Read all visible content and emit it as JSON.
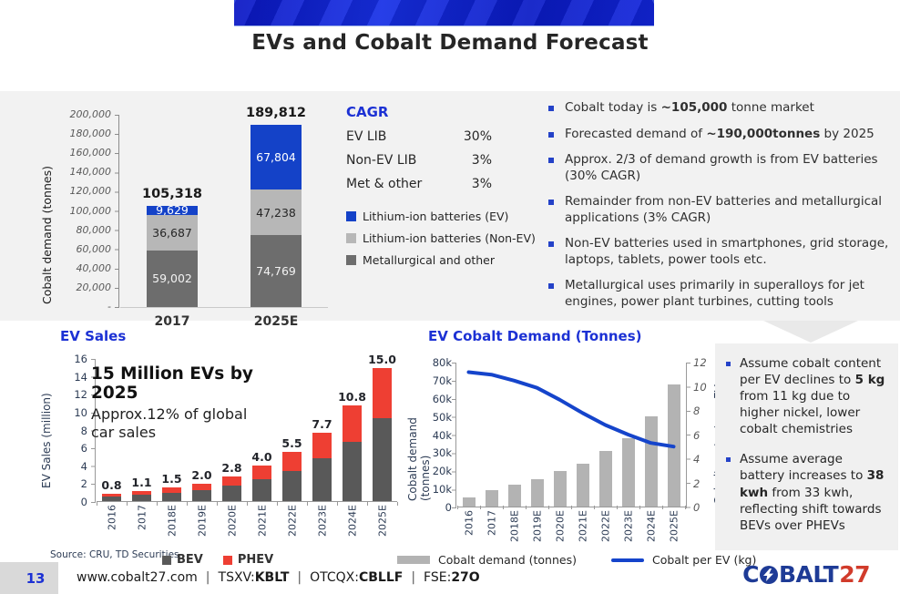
{
  "title": "EVs and Cobalt Demand Forecast",
  "colors": {
    "accent_blue": "#1c31d4",
    "chart_blue": "#1544cb",
    "bev_gray": "#595959",
    "phev_red": "#ee3f33",
    "light_gray_bar": "#b3b3b3",
    "panel_gray": "#f2f2f2"
  },
  "chart_data": [
    {
      "type": "bar",
      "stacked": true,
      "title": "",
      "ylabel": "Cobalt demand (tonnes)",
      "ylim": [
        0,
        200000
      ],
      "yticks": [
        "200,000",
        "180,000",
        "160,000",
        "140,000",
        "120,000",
        "100,000",
        "80,000",
        "60,000",
        "40,000",
        "20,000",
        "-"
      ],
      "categories": [
        "2017",
        "2025E"
      ],
      "totals": [
        "105,318",
        "189,812"
      ],
      "series": [
        {
          "name": "Metallurgical and other",
          "color": "#6d6d6d",
          "label_color": "#f2f2f2",
          "values": [
            59002,
            74769
          ],
          "labels": [
            "59,002",
            "74,769"
          ]
        },
        {
          "name": "Lithium-ion batteries (Non-EV)",
          "color": "#b7b7b7",
          "label_color": "#262626",
          "values": [
            36687,
            47238
          ],
          "labels": [
            "36,687",
            "47,238"
          ]
        },
        {
          "name": "Lithium-ion batteries (EV)",
          "color": "#1442c8",
          "label_color": "#ffffff",
          "values": [
            9629,
            67804
          ],
          "labels": [
            "9,629",
            "67,804"
          ]
        }
      ],
      "legend_position": "right",
      "legend": [
        {
          "label": "Lithium-ion batteries (EV)",
          "color": "#1442c8"
        },
        {
          "label": "Lithium-ion batteries (Non-EV)",
          "color": "#b7b7b7"
        },
        {
          "label": "Metallurgical and other",
          "color": "#6d6d6d"
        }
      ]
    },
    {
      "type": "bar",
      "stacked": true,
      "title": "EV Sales",
      "ylabel": "EV Sales (million)",
      "ylim": [
        0,
        16
      ],
      "yticks": [
        "16",
        "14",
        "12",
        "10",
        "8",
        "6",
        "4",
        "2",
        "0"
      ],
      "categories": [
        "2016",
        "2017",
        "2018E",
        "2019E",
        "2020E",
        "2021E",
        "2022E",
        "2023E",
        "2024E",
        "2025E"
      ],
      "series": [
        {
          "name": "BEV",
          "color": "#595959",
          "values": [
            0.5,
            0.7,
            0.9,
            1.25,
            1.75,
            2.5,
            3.4,
            4.8,
            6.7,
            9.3
          ]
        },
        {
          "name": "PHEV",
          "color": "#ee3f33",
          "values": [
            0.3,
            0.4,
            0.6,
            0.75,
            1.05,
            1.5,
            2.1,
            2.9,
            4.1,
            5.7
          ]
        }
      ],
      "totals": [
        "0.8",
        "1.1",
        "1.5",
        "2.0",
        "2.8",
        "4.0",
        "5.5",
        "7.7",
        "10.8",
        "15.0"
      ],
      "annotation_bold": "15 Million EVs by 2025",
      "annotation_sub": "Approx.12% of global car sales",
      "source": "Source: CRU, TD Securities",
      "legend_position": "bottom"
    },
    {
      "type": "bar+line",
      "title": "EV Cobalt Demand (Tonnes)",
      "ylabel_left": "Cobalt demand (tonnes)",
      "ylabel_right": "Cobalt content per EV (kg)",
      "ylim_left": [
        0,
        80000
      ],
      "ylim_right": [
        0,
        12
      ],
      "yticks_left": [
        "80k",
        "70k",
        "60k",
        "50k",
        "40k",
        "30k",
        "20k",
        "10k",
        "0"
      ],
      "yticks_right": [
        "12",
        "10",
        "8",
        "6",
        "4",
        "2",
        "0"
      ],
      "categories": [
        "2016",
        "2017",
        "2018E",
        "2019E",
        "2020E",
        "2021E",
        "2022E",
        "2023E",
        "2024E",
        "2025E"
      ],
      "bars": {
        "name": "Cobalt demand (tonnes)",
        "color": "#b3b3b3",
        "values": [
          5000,
          9000,
          12000,
          15000,
          20000,
          24000,
          31000,
          38000,
          50000,
          67800
        ]
      },
      "line": {
        "name": "Cobalt per EV (kg)",
        "color": "#1544cb",
        "values": [
          11.2,
          11.0,
          10.5,
          9.9,
          8.9,
          7.8,
          6.8,
          6.0,
          5.3,
          5.0
        ]
      },
      "legend_position": "bottom"
    }
  ],
  "cagr": {
    "heading": "CAGR",
    "rows": [
      {
        "label": "EV LIB",
        "value": "30%"
      },
      {
        "label": "Non-EV LIB",
        "value": "3%"
      },
      {
        "label": "Met & other",
        "value": "3%"
      }
    ]
  },
  "bullets": [
    {
      "pre": "Cobalt today is ",
      "bold": "~105,000",
      "post": " tonne market"
    },
    {
      "pre": "Forecasted demand of ",
      "bold": "~190,000tonnes",
      "post": " by 2025"
    },
    {
      "pre": "Approx. 2/3 of demand growth is from EV  batteries (30% CAGR)",
      "bold": "",
      "post": ""
    },
    {
      "pre": "Remainder from non-EV batteries and metallurgical applications (3% CAGR)",
      "bold": "",
      "post": ""
    },
    {
      "pre": "Non-EV batteries used in smartphones, grid storage,  laptops, tablets, power tools etc.",
      "bold": "",
      "post": ""
    },
    {
      "pre": "Metallurgical uses primarily in superalloys for jet engines, power plant turbines, cutting tools",
      "bold": "",
      "post": ""
    }
  ],
  "sidebar": {
    "items": [
      {
        "pre": "Assume cobalt content per EV declines to ",
        "bold": "5 kg",
        "post": " from 11 kg due to higher nickel, lower cobalt chemistries"
      },
      {
        "pre": "Assume average battery increases to ",
        "bold": "38 kwh",
        "post": " from 33 kwh, reflecting shift towards BEVs over PHEVs"
      }
    ]
  },
  "footer": {
    "page_number": "13",
    "website": "www.cobalt27.com",
    "separator": "|",
    "listings": [
      {
        "label": "TSXV:",
        "ticker": "KBLT"
      },
      {
        "label": "OTCQX:",
        "ticker": "CBLLF"
      },
      {
        "label": "FSE:",
        "ticker": "27O"
      }
    ]
  },
  "logo": {
    "part_c": "C",
    "part_balt": "BALT",
    "part_27": "27"
  }
}
